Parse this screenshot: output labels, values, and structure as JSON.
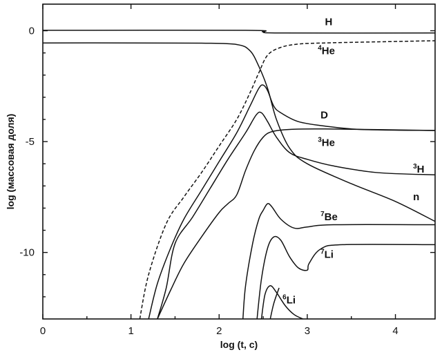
{
  "chart_data": {
    "type": "line",
    "title": "",
    "xlabel": "log (t, c)",
    "ylabel": "log (массовая доля)",
    "xlim": [
      0,
      4.45
    ],
    "ylim": [
      -13,
      1.2
    ],
    "xticks": [
      {
        "value": 0,
        "label": "0"
      },
      {
        "value": 1,
        "label": "1"
      },
      {
        "value": 2,
        "label": "2"
      },
      {
        "value": 3,
        "label": "3"
      },
      {
        "value": 4,
        "label": "4"
      }
    ],
    "yticks": [
      {
        "value": 0,
        "label": "0"
      },
      {
        "value": -5,
        "label": "-5"
      },
      {
        "value": -10,
        "label": "-10"
      }
    ],
    "grid": false,
    "series": [
      {
        "name": "H",
        "label_sup": "",
        "label_main": "H",
        "label_at": [
          3.2,
          0.25
        ],
        "dashed": false,
        "points": [
          [
            0,
            0.02
          ],
          [
            2.3,
            0.02
          ],
          [
            2.5,
            -0.05
          ],
          [
            2.7,
            -0.1
          ],
          [
            4.45,
            -0.1
          ]
        ]
      },
      {
        "name": "4He",
        "label_sup": "4",
        "label_main": "He",
        "label_at": [
          3.12,
          -1.05
        ],
        "dashed": true,
        "points": [
          [
            1.1,
            -13
          ],
          [
            1.2,
            -11.0
          ],
          [
            1.4,
            -8.7
          ],
          [
            1.6,
            -7.5
          ],
          [
            1.8,
            -6.4
          ],
          [
            2.0,
            -5.2
          ],
          [
            2.2,
            -4.0
          ],
          [
            2.35,
            -2.8
          ],
          [
            2.45,
            -1.9
          ],
          [
            2.55,
            -1.1
          ],
          [
            2.7,
            -0.75
          ],
          [
            2.9,
            -0.6
          ],
          [
            3.2,
            -0.55
          ],
          [
            3.8,
            -0.5
          ],
          [
            4.45,
            -0.45
          ]
        ]
      },
      {
        "name": "n",
        "label_sup": "",
        "label_main": "n",
        "label_at": [
          4.2,
          -7.65
        ],
        "dashed": false,
        "points": [
          [
            0,
            -0.55
          ],
          [
            1.0,
            -0.55
          ],
          [
            1.8,
            -0.56
          ],
          [
            2.2,
            -0.62
          ],
          [
            2.35,
            -0.9
          ],
          [
            2.45,
            -1.6
          ],
          [
            2.55,
            -2.6
          ],
          [
            2.65,
            -4.0
          ],
          [
            2.8,
            -5.3
          ],
          [
            3.0,
            -6.0
          ],
          [
            3.5,
            -6.9
          ],
          [
            4.0,
            -7.7
          ],
          [
            4.45,
            -8.6
          ]
        ]
      },
      {
        "name": "D",
        "label_sup": "",
        "label_main": "D",
        "label_at": [
          3.15,
          -3.95
        ],
        "dashed": false,
        "points": [
          [
            1.2,
            -13
          ],
          [
            1.3,
            -11.4
          ],
          [
            1.45,
            -9.8
          ],
          [
            1.6,
            -8.5
          ],
          [
            1.8,
            -7.2
          ],
          [
            2.0,
            -5.9
          ],
          [
            2.2,
            -4.6
          ],
          [
            2.35,
            -3.4
          ],
          [
            2.45,
            -2.6
          ],
          [
            2.5,
            -2.45
          ],
          [
            2.55,
            -2.7
          ],
          [
            2.62,
            -3.4
          ],
          [
            2.7,
            -3.7
          ],
          [
            2.9,
            -4.1
          ],
          [
            3.2,
            -4.3
          ],
          [
            3.6,
            -4.45
          ],
          [
            4.45,
            -4.5
          ]
        ]
      },
      {
        "name": "3He",
        "label_sup": "3",
        "label_main": "He",
        "label_at": [
          3.12,
          -5.2
        ],
        "dashed": false,
        "points": [
          [
            1.3,
            -13
          ],
          [
            1.45,
            -11.7
          ],
          [
            1.6,
            -10.5
          ],
          [
            1.8,
            -9.3
          ],
          [
            2.0,
            -8.2
          ],
          [
            2.1,
            -7.8
          ],
          [
            2.2,
            -7.4
          ],
          [
            2.3,
            -6.3
          ],
          [
            2.4,
            -5.4
          ],
          [
            2.5,
            -4.8
          ],
          [
            2.6,
            -4.55
          ],
          [
            2.8,
            -4.45
          ],
          [
            3.2,
            -4.43
          ],
          [
            4.45,
            -4.5
          ]
        ]
      },
      {
        "name": "3H",
        "label_sup": "3",
        "label_main": "H",
        "label_at": [
          4.2,
          -6.4
        ],
        "dashed": false,
        "points": [
          [
            1.3,
            -13
          ],
          [
            1.4,
            -11.6
          ],
          [
            1.5,
            -9.6
          ],
          [
            1.7,
            -8.4
          ],
          [
            1.9,
            -7.1
          ],
          [
            2.1,
            -5.8
          ],
          [
            2.3,
            -4.6
          ],
          [
            2.42,
            -3.8
          ],
          [
            2.48,
            -3.7
          ],
          [
            2.55,
            -4.1
          ],
          [
            2.65,
            -4.8
          ],
          [
            2.8,
            -5.5
          ],
          [
            3.0,
            -5.8
          ],
          [
            3.3,
            -6.1
          ],
          [
            3.8,
            -6.4
          ],
          [
            4.45,
            -6.5
          ]
        ]
      },
      {
        "name": "7Be",
        "label_sup": "7",
        "label_main": "Be",
        "label_at": [
          3.15,
          -8.55
        ],
        "dashed": false,
        "points": [
          [
            2.27,
            -13
          ],
          [
            2.3,
            -11.5
          ],
          [
            2.38,
            -9.6
          ],
          [
            2.45,
            -8.5
          ],
          [
            2.5,
            -8.1
          ],
          [
            2.55,
            -7.8
          ],
          [
            2.6,
            -7.95
          ],
          [
            2.7,
            -8.5
          ],
          [
            2.85,
            -8.9
          ],
          [
            3.0,
            -8.85
          ],
          [
            3.3,
            -8.75
          ],
          [
            4.45,
            -8.75
          ]
        ]
      },
      {
        "name": "7Li",
        "label_sup": "7",
        "label_main": "Li",
        "label_at": [
          3.15,
          -10.25
        ],
        "dashed": false,
        "points": [
          [
            2.43,
            -13
          ],
          [
            2.48,
            -11.2
          ],
          [
            2.55,
            -9.8
          ],
          [
            2.62,
            -9.3
          ],
          [
            2.7,
            -9.45
          ],
          [
            2.8,
            -10.2
          ],
          [
            2.9,
            -10.7
          ],
          [
            3.0,
            -10.8
          ],
          [
            3.02,
            -10.5
          ],
          [
            3.15,
            -9.85
          ],
          [
            3.4,
            -9.65
          ],
          [
            4.45,
            -9.65
          ]
        ]
      },
      {
        "name": "6Li",
        "label_sup": "6",
        "label_main": "Li",
        "label_at": [
          2.72,
          -12.3
        ],
        "dashed": false,
        "points": [
          [
            2.48,
            -13
          ],
          [
            2.52,
            -11.9
          ],
          [
            2.58,
            -11.5
          ],
          [
            2.65,
            -11.8
          ],
          [
            2.75,
            -12.4
          ],
          [
            2.85,
            -12.8
          ],
          [
            2.95,
            -13
          ]
        ]
      },
      {
        "name": "7Li-tail",
        "label_sup": "",
        "label_main": "",
        "label_at": null,
        "dashed": false,
        "points": [
          [
            2.58,
            -13
          ],
          [
            2.62,
            -12.3
          ],
          [
            2.68,
            -11.6
          ]
        ]
      }
    ]
  }
}
